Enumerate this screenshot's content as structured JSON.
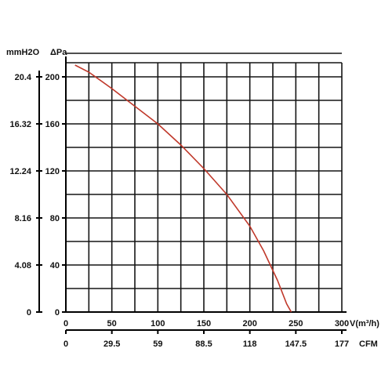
{
  "chart_data": {
    "type": "line",
    "left_unit": "mmH2O",
    "right_unit": "ΔPa",
    "x_unit": "V(m³/h)",
    "cfm_unit": "CFM",
    "x_ticks": [
      "0",
      "50",
      "100",
      "150",
      "200",
      "250",
      "300"
    ],
    "cfm_ticks": [
      "0",
      "29.5",
      "59",
      "88.5",
      "118",
      "147.5",
      "177"
    ],
    "pa_ticks": [
      "0",
      "40",
      "80",
      "120",
      "160",
      "200"
    ],
    "mmh2o_ticks": [
      "0",
      "4.08",
      "8.16",
      "12.24",
      "16.32",
      "20.4"
    ],
    "xlim": [
      0,
      300
    ],
    "ylim": [
      0,
      225
    ],
    "grid": true,
    "curve_color": "#c0392b",
    "series": [
      {
        "x": [
          10,
          25,
          50,
          75,
          100,
          125,
          150,
          175,
          200,
          215,
          230,
          240,
          245
        ],
        "y": [
          210,
          204,
          190,
          175,
          160,
          142,
          122,
          100,
          73,
          52,
          27,
          7,
          0
        ]
      }
    ]
  }
}
